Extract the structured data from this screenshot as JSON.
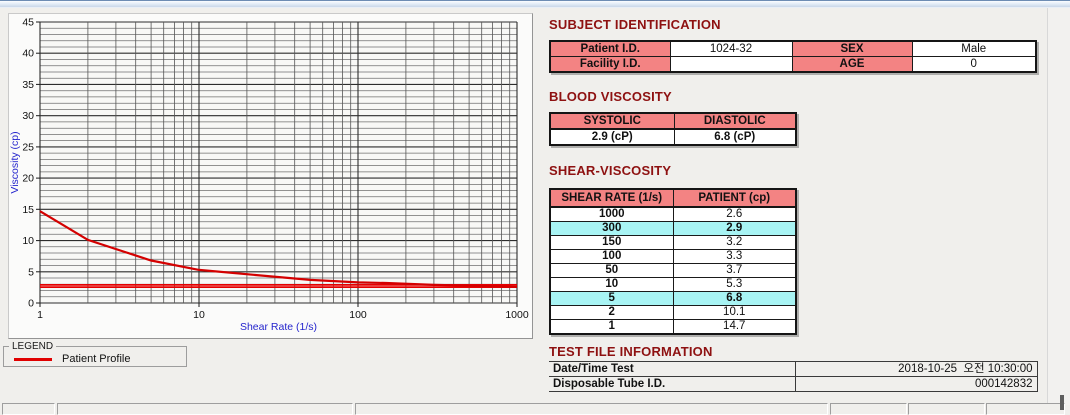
{
  "chart_data": {
    "type": "line",
    "title": "",
    "xlabel": "Shear Rate (1/s)",
    "ylabel": "Viscosity (cp)",
    "x_scale": "log",
    "xlim": [
      1,
      1000
    ],
    "ylim": [
      0,
      45
    ],
    "x_ticks": [
      1,
      10,
      100,
      1000
    ],
    "y_ticks": [
      0,
      5,
      10,
      15,
      20,
      25,
      30,
      35,
      40,
      45
    ],
    "y_minor_step": 1,
    "grid": "on",
    "legend_position": "groupbox below chart",
    "axis_label_color": "#2525cd",
    "series": [
      {
        "name": "Patient Profile",
        "color": "#d40000",
        "x": [
          1,
          2,
          5,
          10,
          50,
          100,
          150,
          300,
          1000
        ],
        "y": [
          14.7,
          10.1,
          6.8,
          5.3,
          3.7,
          3.3,
          3.2,
          2.9,
          2.6
        ]
      }
    ],
    "reference_lines_y": [
      {
        "y": 2.9,
        "color": "#e60000"
      },
      {
        "y": 2.55,
        "color": "#e60000"
      }
    ]
  },
  "legend": {
    "caption": "LEGEND",
    "items": [
      {
        "label": "Patient Profile",
        "color": "#e00000"
      }
    ]
  },
  "sections": {
    "subject": {
      "title": "SUBJECT IDENTIFICATION",
      "rows": [
        {
          "cells": [
            {
              "t": "Patient I.D.",
              "hdr": true
            },
            {
              "t": "1024-32"
            },
            {
              "t": "SEX",
              "hdr": true
            },
            {
              "t": "Male"
            }
          ]
        },
        {
          "cells": [
            {
              "t": "Facility I.D.",
              "hdr": true
            },
            {
              "t": ""
            },
            {
              "t": "AGE",
              "hdr": true
            },
            {
              "t": "0"
            }
          ]
        }
      ]
    },
    "blood": {
      "title": "BLOOD VISCOSITY",
      "headers": [
        "SYSTOLIC",
        "DIASTOLIC"
      ],
      "values": [
        "2.9 (cP)",
        "6.8 (cP)"
      ]
    },
    "shear": {
      "title": "SHEAR-VISCOSITY",
      "headers": [
        "SHEAR RATE (1/s)",
        "PATIENT (cp)"
      ],
      "rows": [
        {
          "rate": "1000",
          "value": "2.6",
          "highlight": false
        },
        {
          "rate": "300",
          "value": "2.9",
          "highlight": true
        },
        {
          "rate": "150",
          "value": "3.2",
          "highlight": false
        },
        {
          "rate": "100",
          "value": "3.3",
          "highlight": false
        },
        {
          "rate": "50",
          "value": "3.7",
          "highlight": false
        },
        {
          "rate": "10",
          "value": "5.3",
          "highlight": false
        },
        {
          "rate": "5",
          "value": "6.8",
          "highlight": true
        },
        {
          "rate": "2",
          "value": "10.1",
          "highlight": false
        },
        {
          "rate": "1",
          "value": "14.7",
          "highlight": false
        }
      ]
    },
    "testfile": {
      "title": "TEST FILE INFORMATION",
      "rows": [
        {
          "label": "Date/Time Test",
          "value": "2018-10-25  오전 10:30:00"
        },
        {
          "label": "Disposable Tube I.D.",
          "value": "000142832"
        }
      ]
    }
  },
  "colors": {
    "header_fill": "#f38383",
    "highlight_fill": "#a8f4f4",
    "section_title": "#8e1111"
  },
  "statusbar": {
    "segments": [
      "",
      "",
      "",
      "",
      "",
      ""
    ]
  }
}
